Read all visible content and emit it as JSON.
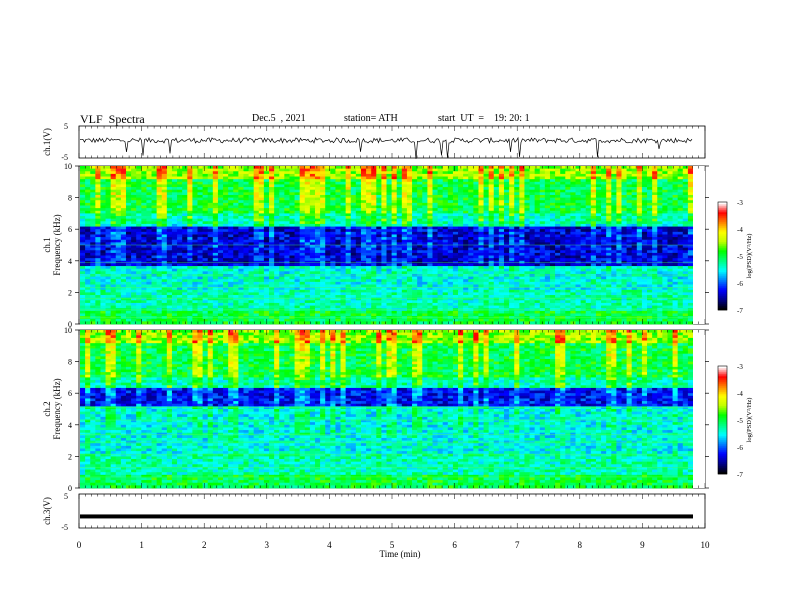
{
  "header": {
    "title": "VLF  Spectra",
    "date": "Dec.5  , 2021",
    "station": "station= ATH",
    "start_ut": "start  UT  =    19: 20: 1"
  },
  "chart_data": {
    "type": "heatmap",
    "x": {
      "label": "Time  (min)",
      "range": [
        0,
        10
      ],
      "ticks": [
        "0",
        "1",
        "2",
        "3",
        "4",
        "5",
        "6",
        "7",
        "8",
        "9",
        "10"
      ]
    },
    "panels": [
      {
        "id": "ch1-waveform",
        "type": "line",
        "ylabel": "ch.1(V)",
        "ylim": [
          -5,
          5
        ],
        "yticks": [
          "5",
          "-5"
        ],
        "level": 0.5
      },
      {
        "id": "ch1-spectrogram",
        "type": "heatmap",
        "channel": "ch.1",
        "ylabel": "Frequency  (kHz)",
        "ylim": [
          0,
          10
        ],
        "yticks": [
          "0",
          "2",
          "4",
          "6",
          "8",
          "10"
        ]
      },
      {
        "id": "ch2-spectrogram",
        "type": "heatmap",
        "channel": "ch.2",
        "ylabel": "Frequency  (kHz)",
        "ylim": [
          0,
          10
        ],
        "yticks": [
          "0",
          "2",
          "4",
          "6",
          "8",
          "10"
        ]
      },
      {
        "id": "ch3-waveform",
        "type": "line",
        "ylabel": "ch.3(V)",
        "ylim": [
          -5,
          5
        ],
        "yticks": [
          "5",
          "-5"
        ],
        "level": -1.6
      }
    ],
    "colorbar": {
      "label": "log(PSD)(V²/Hz)",
      "range": [
        -7,
        -3
      ],
      "ticks": [
        "-3",
        "-4",
        "-5",
        "-6",
        "-7"
      ],
      "colors": [
        "#000000",
        "#00008b",
        "#0000ff",
        "#0080ff",
        "#00ffff",
        "#00ff80",
        "#00ff00",
        "#c0ff00",
        "#ffff00",
        "#ff8000",
        "#ff0000",
        "#ffffff"
      ]
    },
    "colors": {
      "background": "#00007a",
      "quiet_band": "#000a40",
      "noise": "#00a0ff",
      "emission": "#40ff60",
      "waveform": "#000000"
    }
  }
}
